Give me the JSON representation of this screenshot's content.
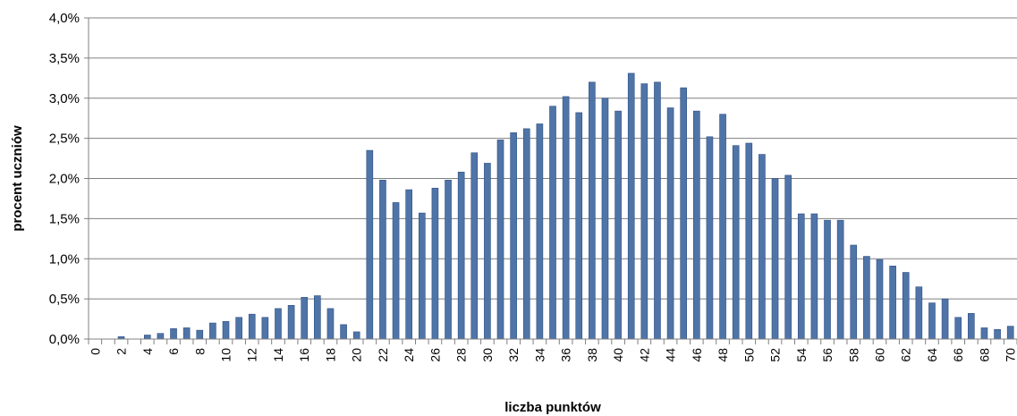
{
  "chart_data": {
    "type": "bar",
    "xlabel": "liczba punktów",
    "ylabel": "procent  uczniów",
    "ylim": [
      0,
      4.0
    ],
    "y_tick_values": [
      0,
      0.5,
      1.0,
      1.5,
      2.0,
      2.5,
      3.0,
      3.5,
      4.0
    ],
    "y_tick_labels": [
      "0,0%",
      "0,5%",
      "1,0%",
      "1,5%",
      "2,0%",
      "2,5%",
      "3,0%",
      "3,5%",
      "4,0%"
    ],
    "grid": "horizontal",
    "legend": "none",
    "colors": {
      "bar": "#4f74a8",
      "bar_dark": "#2f4f80",
      "grid": "#808080",
      "axis": "#808080"
    },
    "categories": [
      "0",
      "1",
      "2",
      "3",
      "4",
      "5",
      "6",
      "7",
      "8",
      "9",
      "10",
      "11",
      "12",
      "13",
      "14",
      "15",
      "16",
      "17",
      "18",
      "19",
      "20",
      "21",
      "22",
      "23",
      "24",
      "25",
      "26",
      "27",
      "28",
      "29",
      "30",
      "31",
      "32",
      "33",
      "34",
      "35",
      "36",
      "37",
      "38",
      "39",
      "40",
      "41",
      "42",
      "43",
      "44",
      "45",
      "46",
      "47",
      "48",
      "49",
      "50",
      "51",
      "52",
      "53",
      "54",
      "55",
      "56",
      "57",
      "58",
      "59",
      "60",
      "61",
      "62",
      "63",
      "64",
      "65",
      "66",
      "67",
      "68",
      "69",
      "70"
    ],
    "x_tick_labels": [
      "0",
      "2",
      "4",
      "6",
      "8",
      "10",
      "12",
      "14",
      "16",
      "18",
      "20",
      "22",
      "24",
      "26",
      "28",
      "30",
      "32",
      "34",
      "36",
      "38",
      "40",
      "42",
      "44",
      "46",
      "48",
      "50",
      "52",
      "54",
      "56",
      "58",
      "60",
      "62",
      "64",
      "66",
      "68",
      "70"
    ],
    "values": [
      0.0,
      0.0,
      0.03,
      0.0,
      0.05,
      0.07,
      0.13,
      0.14,
      0.11,
      0.2,
      0.22,
      0.27,
      0.31,
      0.27,
      0.38,
      0.42,
      0.52,
      0.54,
      0.38,
      0.18,
      0.09,
      2.35,
      1.98,
      1.7,
      1.86,
      1.57,
      1.88,
      1.98,
      2.08,
      2.32,
      2.19,
      2.48,
      2.57,
      2.62,
      2.68,
      2.9,
      3.02,
      2.82,
      3.2,
      3.0,
      2.84,
      3.31,
      3.18,
      3.2,
      2.88,
      3.13,
      2.84,
      2.52,
      2.8,
      2.41,
      2.44,
      2.3,
      2.0,
      2.04,
      1.56,
      1.56,
      1.48,
      1.48,
      1.17,
      1.03,
      0.99,
      0.91,
      0.83,
      0.65,
      0.45,
      0.5,
      0.27,
      0.32,
      0.14,
      0.12,
      0.16
    ]
  }
}
